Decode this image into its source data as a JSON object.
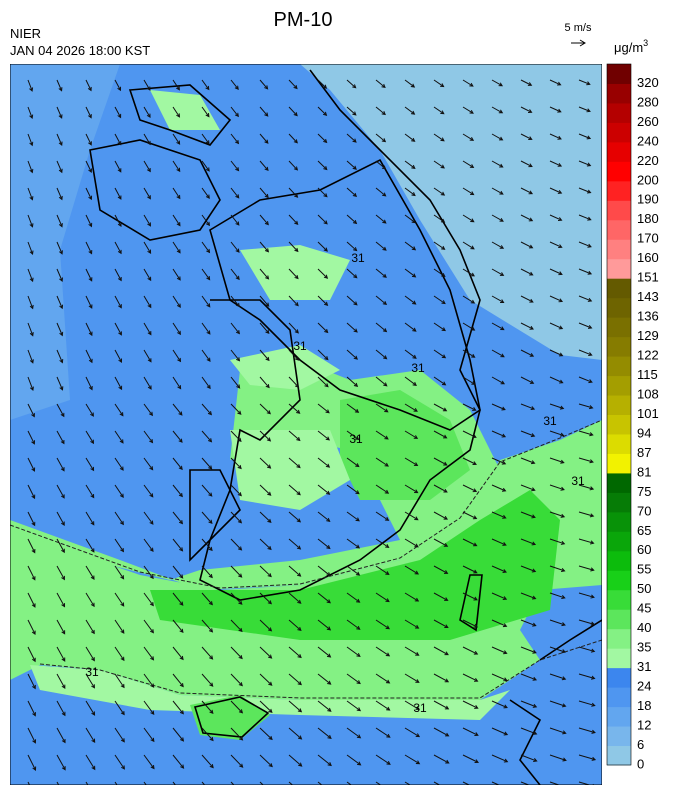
{
  "title": "PM-10",
  "agency": "NIER",
  "datetime": "JAN 04 2026 18:00 KST",
  "wind_scale": "5 m/s",
  "unit": {
    "base": "μg/m",
    "sup": "3"
  },
  "contour_labels": [
    31,
    31,
    31,
    31,
    31,
    31,
    31,
    31
  ],
  "legend": {
    "items": [
      {
        "label": 0,
        "color": "#8fc8e6"
      },
      {
        "label": 6,
        "color": "#78b6ec"
      },
      {
        "label": 12,
        "color": "#62a6ef"
      },
      {
        "label": 18,
        "color": "#4f96f0"
      },
      {
        "label": 24,
        "color": "#3c86ee"
      },
      {
        "label": 31,
        "color": "#a2f8a2"
      },
      {
        "label": 35,
        "color": "#84f184"
      },
      {
        "label": 40,
        "color": "#5ce65c"
      },
      {
        "label": 45,
        "color": "#38dc38"
      },
      {
        "label": 50,
        "color": "#18d018"
      },
      {
        "label": 55,
        "color": "#0cbc0c"
      },
      {
        "label": 60,
        "color": "#0aa60a"
      },
      {
        "label": 65,
        "color": "#089208"
      },
      {
        "label": 70,
        "color": "#067c06"
      },
      {
        "label": 75,
        "color": "#006800"
      },
      {
        "label": 81,
        "color": "#f2f200"
      },
      {
        "label": 87,
        "color": "#dcdc00"
      },
      {
        "label": 94,
        "color": "#c8c400"
      },
      {
        "label": 101,
        "color": "#b6b000"
      },
      {
        "label": 108,
        "color": "#a49e00"
      },
      {
        "label": 115,
        "color": "#948c00"
      },
      {
        "label": 122,
        "color": "#867c00"
      },
      {
        "label": 129,
        "color": "#7a7000"
      },
      {
        "label": 136,
        "color": "#6e6400"
      },
      {
        "label": 143,
        "color": "#645a00"
      },
      {
        "label": 151,
        "color": "#ff9a9a"
      },
      {
        "label": 160,
        "color": "#ff8080"
      },
      {
        "label": 170,
        "color": "#ff6666"
      },
      {
        "label": 180,
        "color": "#ff4a4a"
      },
      {
        "label": 190,
        "color": "#ff2222"
      },
      {
        "label": 200,
        "color": "#ff0000"
      },
      {
        "label": 220,
        "color": "#e60000"
      },
      {
        "label": 240,
        "color": "#cc0000"
      },
      {
        "label": 260,
        "color": "#b40000"
      },
      {
        "label": 280,
        "color": "#980000"
      },
      {
        "label": 320,
        "color": "#700000"
      }
    ]
  }
}
